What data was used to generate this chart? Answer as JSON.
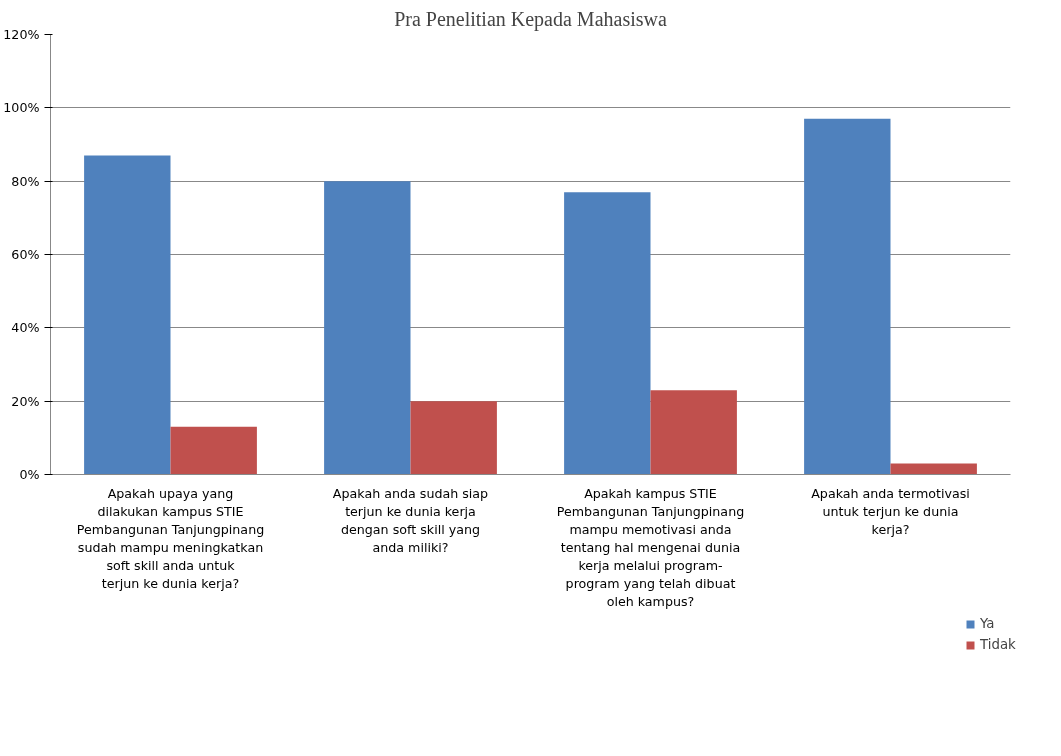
{
  "chart_data": {
    "type": "bar",
    "title": "Pra Penelitian Kepada Mahasiswa",
    "categories": [
      "Apakah upaya yang dilakukan kampus STIE Pembangunan Tanjungpinang sudah mampu meningkatkan soft skill anda untuk terjun ke dunia kerja?",
      "Apakah anda sudah siap terjun ke dunia kerja dengan soft skill yang anda miliki?",
      "Apakah kampus STIE Pembangunan Tanjungpinang mampu memotivasi anda tentang hal mengenai dunia kerja melalui program-program yang telah dibuat oleh kampus?",
      "Apakah anda termotivasi untuk terjun ke dunia kerja?"
    ],
    "series": [
      {
        "name": "Ya",
        "color": "#4f81bd",
        "values": [
          87,
          80,
          77,
          97
        ]
      },
      {
        "name": "Tidak",
        "color": "#c0504d",
        "values": [
          13,
          20,
          23,
          3
        ]
      }
    ],
    "ylim": [
      0,
      120
    ],
    "yticks": [
      {
        "value": 0,
        "label": "0%"
      },
      {
        "value": 20,
        "label": "20%"
      },
      {
        "value": 40,
        "label": "40%"
      },
      {
        "value": 60,
        "label": "60%"
      },
      {
        "value": 80,
        "label": "80%"
      },
      {
        "value": 100,
        "label": "100%"
      },
      {
        "value": 120,
        "label": "120%"
      }
    ],
    "grid": "y",
    "legend": "bottom right"
  }
}
